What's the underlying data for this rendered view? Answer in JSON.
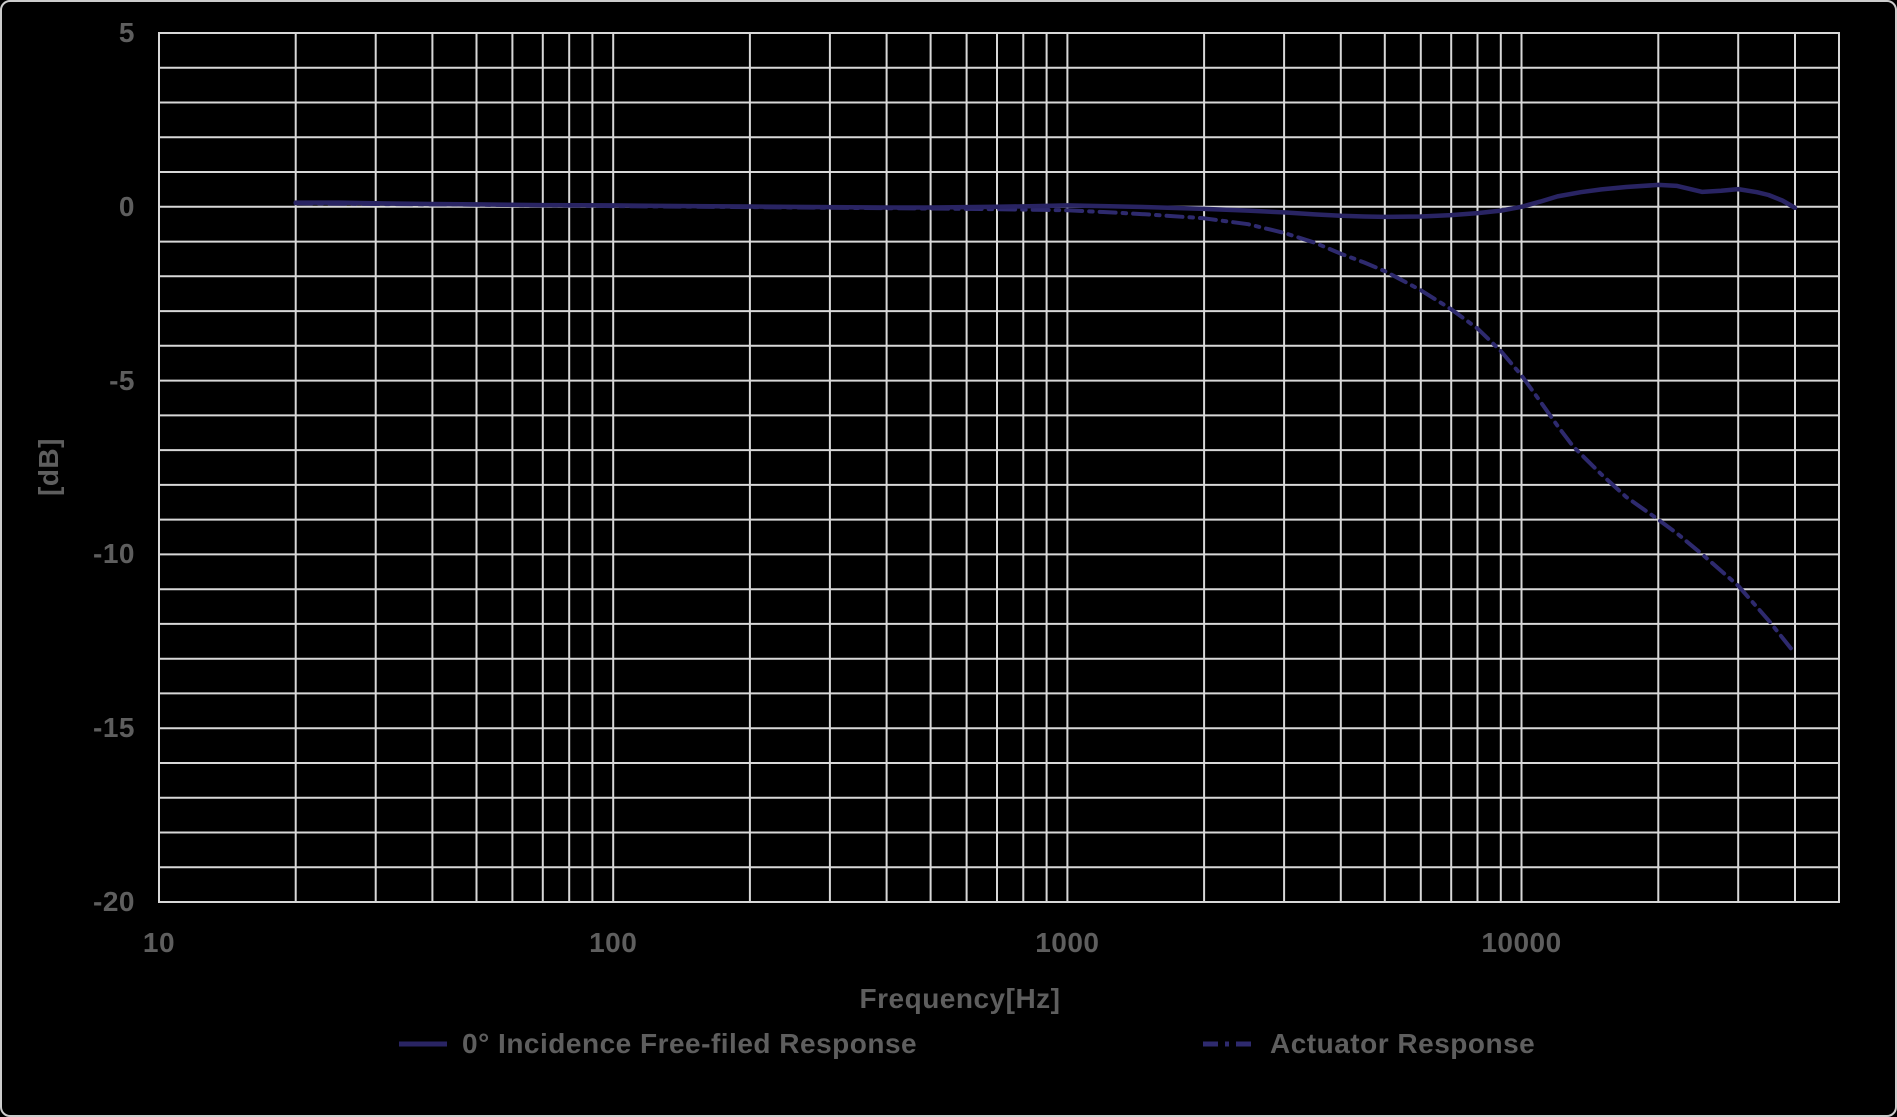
{
  "colors": {
    "background": "#000000",
    "frame_border": "#cdcdcd",
    "grid": "#d8d8d8",
    "text": "#5e5e5e",
    "series_solid": "#292463",
    "series_dashdot": "#2e2a6e"
  },
  "chart_data": {
    "type": "line",
    "title": "",
    "xlabel": "Frequency[Hz]",
    "ylabel": "[dB]",
    "x_scale": "log",
    "x_range": [
      10,
      50000
    ],
    "y_range": [
      -20,
      5
    ],
    "grid": {
      "y_step_db": 1,
      "x_minor_log": true
    },
    "legend_position": "bottom",
    "x_ticks": [
      {
        "v": 10,
        "label": "10"
      },
      {
        "v": 100,
        "label": "100"
      },
      {
        "v": 1000,
        "label": "1000"
      },
      {
        "v": 10000,
        "label": "10000"
      }
    ],
    "y_ticks": [
      {
        "v": 5,
        "label": "5"
      },
      {
        "v": 0,
        "label": "0"
      },
      {
        "v": -5,
        "label": "-5"
      },
      {
        "v": -10,
        "label": "-10"
      },
      {
        "v": -15,
        "label": "-15"
      },
      {
        "v": -20,
        "label": "-20"
      }
    ],
    "series": [
      {
        "name": "0° Incidence Free-filed Response",
        "line_style": "solid",
        "color": "#292463",
        "points": [
          [
            20,
            0.12
          ],
          [
            25,
            0.12
          ],
          [
            30,
            0.1
          ],
          [
            40,
            0.08
          ],
          [
            50,
            0.07
          ],
          [
            70,
            0.05
          ],
          [
            100,
            0.04
          ],
          [
            150,
            0.02
          ],
          [
            200,
            0.01
          ],
          [
            300,
            -0.01
          ],
          [
            400,
            -0.02
          ],
          [
            500,
            -0.02
          ],
          [
            700,
            0.0
          ],
          [
            850,
            0.02
          ],
          [
            1000,
            0.04
          ],
          [
            1200,
            0.02
          ],
          [
            1500,
            -0.01
          ],
          [
            2000,
            -0.06
          ],
          [
            2500,
            -0.11
          ],
          [
            3000,
            -0.16
          ],
          [
            3500,
            -0.22
          ],
          [
            4000,
            -0.26
          ],
          [
            4500,
            -0.28
          ],
          [
            5000,
            -0.29
          ],
          [
            6000,
            -0.28
          ],
          [
            7000,
            -0.24
          ],
          [
            8000,
            -0.18
          ],
          [
            9000,
            -0.11
          ],
          [
            10000,
            0.0
          ],
          [
            11000,
            0.15
          ],
          [
            12000,
            0.3
          ],
          [
            13500,
            0.42
          ],
          [
            15000,
            0.5
          ],
          [
            17000,
            0.57
          ],
          [
            20000,
            0.63
          ],
          [
            22000,
            0.6
          ],
          [
            25000,
            0.43
          ],
          [
            27500,
            0.46
          ],
          [
            30000,
            0.51
          ],
          [
            33000,
            0.42
          ],
          [
            35000,
            0.34
          ],
          [
            37500,
            0.18
          ],
          [
            40000,
            -0.03
          ]
        ]
      },
      {
        "name": "Actuator Response",
        "line_style": "dash-dot",
        "color": "#2e2a6e",
        "points": [
          [
            20,
            0.1
          ],
          [
            30,
            0.08
          ],
          [
            50,
            0.06
          ],
          [
            100,
            0.02
          ],
          [
            200,
            -0.01
          ],
          [
            300,
            -0.03
          ],
          [
            500,
            -0.05
          ],
          [
            700,
            -0.07
          ],
          [
            900,
            -0.09
          ],
          [
            1000,
            -0.1
          ],
          [
            1200,
            -0.15
          ],
          [
            1500,
            -0.22
          ],
          [
            2000,
            -0.33
          ],
          [
            2500,
            -0.5
          ],
          [
            3000,
            -0.75
          ],
          [
            3500,
            -1.03
          ],
          [
            4000,
            -1.35
          ],
          [
            4500,
            -1.6
          ],
          [
            5000,
            -1.85
          ],
          [
            6000,
            -2.4
          ],
          [
            7000,
            -2.95
          ],
          [
            8000,
            -3.5
          ],
          [
            9000,
            -4.15
          ],
          [
            10000,
            -4.85
          ],
          [
            11000,
            -5.6
          ],
          [
            12000,
            -6.3
          ],
          [
            13000,
            -6.9
          ],
          [
            15000,
            -7.7
          ],
          [
            17000,
            -8.35
          ],
          [
            20000,
            -9.0
          ],
          [
            22000,
            -9.4
          ],
          [
            25000,
            -10.0
          ],
          [
            30000,
            -10.9
          ],
          [
            35000,
            -11.9
          ],
          [
            40000,
            -12.85
          ]
        ]
      }
    ]
  }
}
